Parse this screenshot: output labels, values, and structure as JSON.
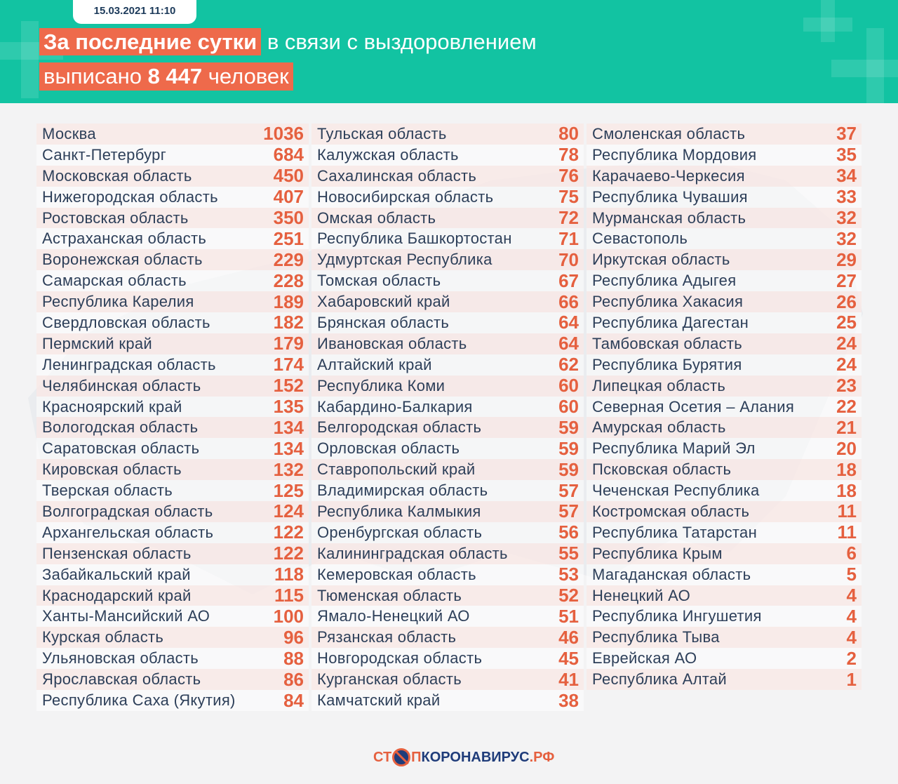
{
  "header": {
    "date": "15.03.2021 11:10",
    "title_highlight": "За последние сутки",
    "title_rest": " в связи с выздоровлением",
    "line2_pre": "выписано ",
    "line2_number": "8 447",
    "line2_post": " человек"
  },
  "colors": {
    "header_bg": "#12c3a2",
    "accent": "#ee6a4b",
    "value": "#e5603f",
    "text": "#2d3f59"
  },
  "columns": [
    [
      [
        "Москва",
        "1036"
      ],
      [
        "Санкт-Петербург",
        "684"
      ],
      [
        "Московская область",
        "450"
      ],
      [
        "Нижегородская область",
        "407"
      ],
      [
        "Ростовская область",
        "350"
      ],
      [
        "Астраханская область",
        "251"
      ],
      [
        "Воронежская область",
        "229"
      ],
      [
        "Самарская область",
        "228"
      ],
      [
        "Республика Карелия",
        "189"
      ],
      [
        "Свердловская область",
        "182"
      ],
      [
        "Пермский край",
        "179"
      ],
      [
        "Ленинградская область",
        "174"
      ],
      [
        "Челябинская область",
        "152"
      ],
      [
        "Красноярский край",
        "135"
      ],
      [
        "Вологодская область",
        "134"
      ],
      [
        "Саратовская область",
        "134"
      ],
      [
        "Кировская область",
        "132"
      ],
      [
        "Тверская область",
        "125"
      ],
      [
        "Волгоградская область",
        "124"
      ],
      [
        "Архангельская область",
        "122"
      ],
      [
        "Пензенская область",
        "122"
      ],
      [
        "Забайкальский край",
        "118"
      ],
      [
        "Краснодарский край",
        "115"
      ],
      [
        "Ханты-Мансийский АО",
        "100"
      ],
      [
        "Курская область",
        "96"
      ],
      [
        "Ульяновская область",
        "88"
      ],
      [
        "Ярославская область",
        "86"
      ],
      [
        "Республика Саха (Якутия)",
        "84"
      ]
    ],
    [
      [
        "Тульская область",
        "80"
      ],
      [
        "Калужская область",
        "78"
      ],
      [
        "Сахалинская область",
        "76"
      ],
      [
        "Новосибирская область",
        "75"
      ],
      [
        "Омская область",
        "72"
      ],
      [
        "Республика Башкортостан",
        "71"
      ],
      [
        "Удмуртская Республика",
        "70"
      ],
      [
        "Томская область",
        "67"
      ],
      [
        "Хабаровский край",
        "66"
      ],
      [
        "Брянская область",
        "64"
      ],
      [
        "Ивановская область",
        "64"
      ],
      [
        "Алтайский край",
        "62"
      ],
      [
        "Республика Коми",
        "60"
      ],
      [
        "Кабардино-Балкария",
        "60"
      ],
      [
        "Белгородская область",
        "59"
      ],
      [
        "Орловская область",
        "59"
      ],
      [
        "Ставропольский край",
        "59"
      ],
      [
        "Владимирская область",
        "57"
      ],
      [
        "Республика Калмыкия",
        "57"
      ],
      [
        "Оренбургская область",
        "56"
      ],
      [
        "Калининградская область",
        "55"
      ],
      [
        "Кемеровская область",
        "53"
      ],
      [
        "Тюменская область",
        "52"
      ],
      [
        "Ямало-Ненецкий АО",
        "51"
      ],
      [
        "Рязанская область",
        "46"
      ],
      [
        "Новгородская область",
        "45"
      ],
      [
        "Курганская область",
        "41"
      ],
      [
        "Камчатский край",
        "38"
      ]
    ],
    [
      [
        "Смоленская область",
        "37"
      ],
      [
        "Республика Мордовия",
        "35"
      ],
      [
        "Карачаево-Черкесия",
        "34"
      ],
      [
        "Республика Чувашия",
        "33"
      ],
      [
        "Мурманская область",
        "32"
      ],
      [
        "Севастополь",
        "32"
      ],
      [
        "Иркутская область",
        "29"
      ],
      [
        "Республика Адыгея",
        "27"
      ],
      [
        "Республика Хакасия",
        "26"
      ],
      [
        "Республика Дагестан",
        "25"
      ],
      [
        "Тамбовская область",
        "24"
      ],
      [
        "Республика Бурятия",
        "24"
      ],
      [
        "Липецкая область",
        "23"
      ],
      [
        "Северная Осетия – Алания",
        "22"
      ],
      [
        "Амурская область",
        "21"
      ],
      [
        "Республика Марий Эл",
        "20"
      ],
      [
        "Псковская область",
        "18"
      ],
      [
        "Чеченская Республика",
        "18"
      ],
      [
        "Костромская область",
        "11"
      ],
      [
        "Республика Татарстан",
        "11"
      ],
      [
        "Республика Крым",
        "6"
      ],
      [
        "Магаданская область",
        "5"
      ],
      [
        "Ненецкий АО",
        "4"
      ],
      [
        "Республика Ингушетия",
        "4"
      ],
      [
        "Республика Тыва",
        "4"
      ],
      [
        "Еврейская АО",
        "2"
      ],
      [
        "Республика Алтай",
        "1"
      ]
    ]
  ],
  "footer": {
    "logo_left": "СТ",
    "logo_right_1": "П",
    "logo_right_2": "КОРОНАВИРУС",
    "logo_right_3": ".РФ"
  }
}
